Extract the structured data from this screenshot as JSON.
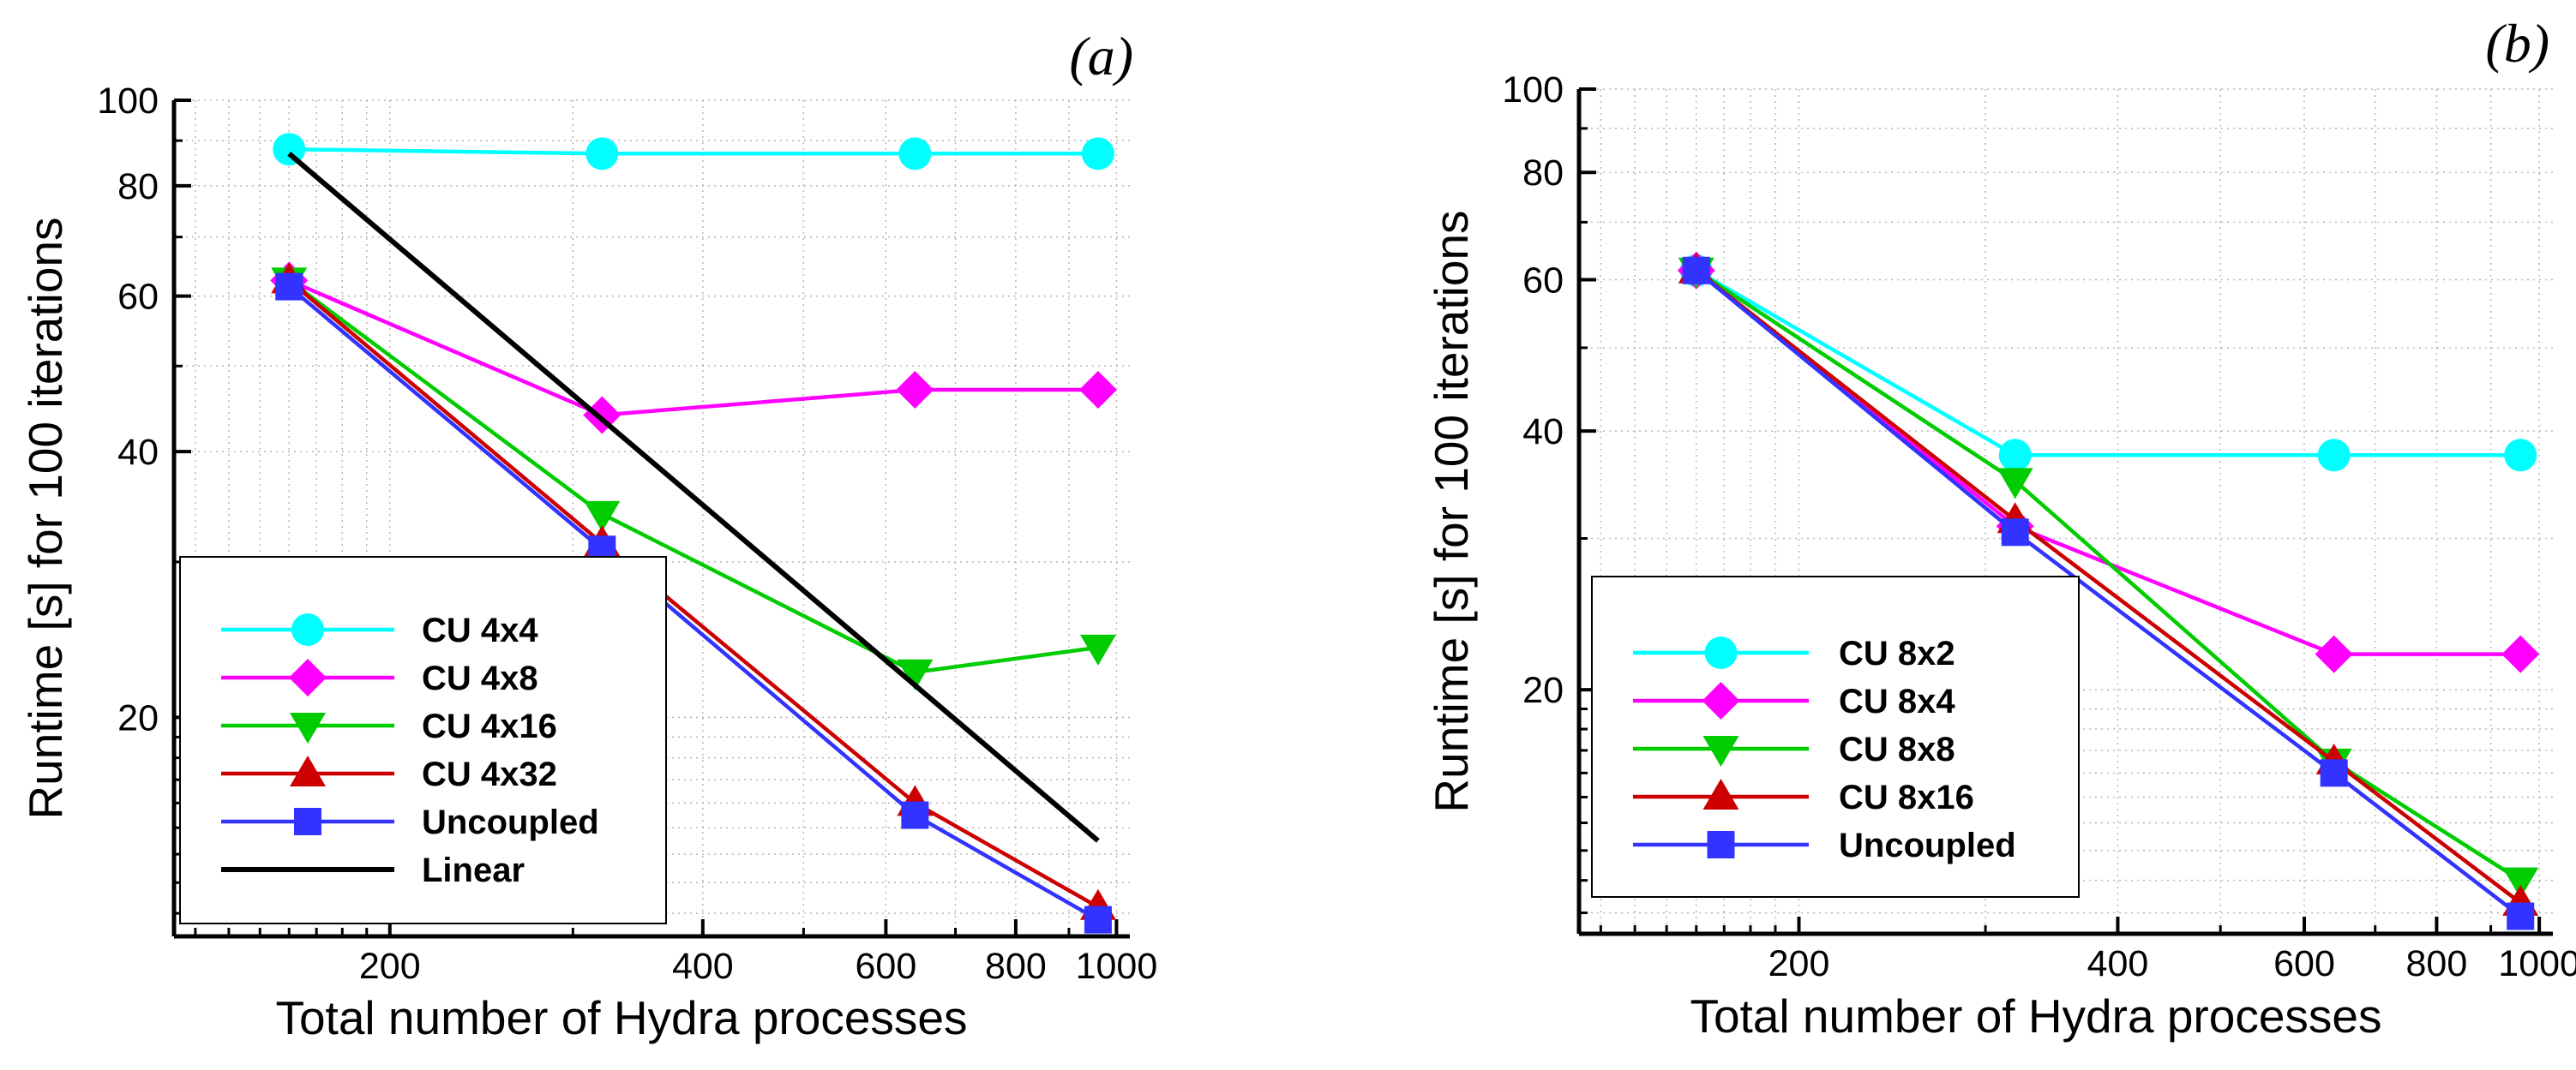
{
  "chart_data": [
    {
      "type": "line",
      "panel_label": "(a)",
      "xlabel": "Total number of Hydra  processes",
      "ylabel": "Runtime [s]  for 100 iterations",
      "xscale": "log",
      "yscale": "log",
      "xlim": [
        124,
        1030
      ],
      "ylim": [
        11.3,
        100
      ],
      "x_ticks": [
        {
          "value": 200,
          "label": "200"
        },
        {
          "value": 400,
          "label": "400"
        },
        {
          "value": 600,
          "label": "600"
        },
        {
          "value": 800,
          "label": "800"
        },
        {
          "value": 1000,
          "label": "1000"
        }
      ],
      "y_ticks": [
        {
          "value": 20,
          "label": "20"
        },
        {
          "value": 40,
          "label": "40"
        },
        {
          "value": 60,
          "label": "60"
        },
        {
          "value": 80,
          "label": "80"
        },
        {
          "value": 100,
          "label": "100"
        }
      ],
      "grid": true,
      "legend_position": "bottom-left",
      "series": [
        {
          "name": "CU 4x4",
          "color": "#00ffff",
          "marker": "circle",
          "x": [
            160,
            320,
            640,
            960
          ],
          "y": [
            88,
            87,
            87,
            87
          ]
        },
        {
          "name": "CU 4x8",
          "color": "#ff00ff",
          "marker": "diamond",
          "x": [
            160,
            320,
            640,
            960
          ],
          "y": [
            62.5,
            44,
            47,
            47
          ]
        },
        {
          "name": "CU 4x16",
          "color": "#00cc00",
          "marker": "triangle-down",
          "x": [
            160,
            320,
            640,
            960
          ],
          "y": [
            62.5,
            34,
            22.5,
            24
          ]
        },
        {
          "name": "CU 4x32",
          "color": "#cc0000",
          "marker": "triangle-up",
          "x": [
            160,
            320,
            640,
            960
          ],
          "y": [
            62.5,
            31.5,
            16,
            12.2
          ]
        },
        {
          "name": "Uncoupled",
          "color": "#3333ff",
          "marker": "square",
          "x": [
            160,
            320,
            640,
            960
          ],
          "y": [
            61.5,
            31,
            15.5,
            11.8
          ]
        },
        {
          "name": "Linear",
          "color": "#000000",
          "marker": "none",
          "x": [
            160,
            960
          ],
          "y": [
            87,
            14.5
          ]
        }
      ]
    },
    {
      "type": "line",
      "panel_label": "(b)",
      "xlabel": "Total number of Hydra  processes",
      "ylabel": "Runtime [s]  for 100 iterations",
      "xscale": "log",
      "yscale": "log",
      "xlim": [
        124,
        1030
      ],
      "ylim": [
        10.4,
        100
      ],
      "x_ticks": [
        {
          "value": 200,
          "label": "200"
        },
        {
          "value": 400,
          "label": "400"
        },
        {
          "value": 600,
          "label": "600"
        },
        {
          "value": 800,
          "label": "800"
        },
        {
          "value": 1000,
          "label": "1000"
        }
      ],
      "y_ticks": [
        {
          "value": 20,
          "label": "20"
        },
        {
          "value": 40,
          "label": "40"
        },
        {
          "value": 60,
          "label": "60"
        },
        {
          "value": 80,
          "label": "80"
        },
        {
          "value": 100,
          "label": "100"
        }
      ],
      "grid": true,
      "legend_position": "bottom-left",
      "series": [
        {
          "name": "CU 8x2",
          "color": "#00ffff",
          "marker": "circle",
          "x": [
            160,
            320,
            640,
            960
          ],
          "y": [
            61.5,
            37.5,
            37.5,
            37.5
          ]
        },
        {
          "name": "CU 8x4",
          "color": "#ff00ff",
          "marker": "diamond",
          "x": [
            160,
            320,
            640,
            960
          ],
          "y": [
            61.5,
            31,
            22,
            22
          ]
        },
        {
          "name": "CU 8x8",
          "color": "#00cc00",
          "marker": "triangle-down",
          "x": [
            160,
            320,
            640,
            960
          ],
          "y": [
            61.5,
            35,
            16.5,
            12
          ]
        },
        {
          "name": "CU 8x16",
          "color": "#cc0000",
          "marker": "triangle-up",
          "x": [
            160,
            320,
            640,
            960
          ],
          "y": [
            61.5,
            31.5,
            16.5,
            11.3
          ]
        },
        {
          "name": "Uncoupled",
          "color": "#3333ff",
          "marker": "square",
          "x": [
            160,
            320,
            640,
            960
          ],
          "y": [
            61.5,
            30.5,
            16,
            10.9
          ]
        }
      ]
    }
  ]
}
